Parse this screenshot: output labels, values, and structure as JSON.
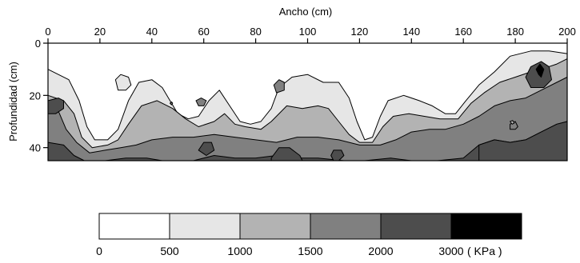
{
  "chart_data": {
    "type": "heatmap",
    "title": "",
    "xlabel": "Ancho (cm)",
    "ylabel": "Profundidad (cm)",
    "x_axis_position": "top",
    "xlim": [
      0,
      200
    ],
    "ylim": [
      0,
      45
    ],
    "y_inverted": true,
    "x_ticks": [
      0,
      20,
      40,
      60,
      80,
      100,
      120,
      140,
      160,
      180,
      200
    ],
    "y_ticks": [
      0,
      20,
      40
    ],
    "legend": {
      "placement": "bottom",
      "breaks": [
        "0",
        "500",
        "1000",
        "1500",
        "2000",
        "3000"
      ],
      "unit": "( KPa )",
      "classes": [
        {
          "from": 0,
          "to": 500,
          "color": "#ffffff"
        },
        {
          "from": 500,
          "to": 1000,
          "color": "#e6e6e6"
        },
        {
          "from": 1000,
          "to": 1500,
          "color": "#b3b3b3"
        },
        {
          "from": 1500,
          "to": 2000,
          "color": "#808080"
        },
        {
          "from": 2000,
          "to": 3000,
          "color": "#4d4d4d"
        },
        {
          "from": 3000,
          "to": null,
          "color": "#000000"
        }
      ]
    },
    "contours": [
      {
        "level": 500,
        "color": "#e6e6e6",
        "upper": [
          [
            0,
            10
          ],
          [
            8,
            14
          ],
          [
            12,
            22
          ],
          [
            15,
            32
          ],
          [
            18,
            37
          ],
          [
            23,
            37
          ],
          [
            27,
            33
          ],
          [
            31,
            22
          ],
          [
            35,
            15
          ],
          [
            40,
            14
          ],
          [
            44,
            17
          ],
          [
            47,
            22
          ],
          [
            50,
            27
          ],
          [
            54,
            29
          ],
          [
            58,
            28
          ],
          [
            62,
            22
          ],
          [
            66,
            18
          ],
          [
            70,
            24
          ],
          [
            74,
            30
          ],
          [
            78,
            31
          ],
          [
            82,
            30
          ],
          [
            86,
            25
          ],
          [
            89,
            17
          ],
          [
            94,
            13
          ],
          [
            100,
            12
          ],
          [
            106,
            15
          ],
          [
            112,
            15
          ],
          [
            116,
            21
          ],
          [
            119,
            30
          ],
          [
            122,
            37
          ],
          [
            125,
            36
          ],
          [
            128,
            28
          ],
          [
            131,
            22
          ],
          [
            137,
            20
          ],
          [
            143,
            22
          ],
          [
            148,
            24
          ],
          [
            153,
            27
          ],
          [
            157,
            27
          ],
          [
            161,
            22
          ],
          [
            166,
            16
          ],
          [
            172,
            11
          ],
          [
            178,
            5
          ],
          [
            186,
            3
          ],
          [
            193,
            3
          ],
          [
            200,
            4
          ]
        ]
      },
      {
        "level": 1000,
        "color": "#b3b3b3",
        "upper": [
          [
            0,
            20
          ],
          [
            6,
            22
          ],
          [
            10,
            27
          ],
          [
            13,
            36
          ],
          [
            17,
            40
          ],
          [
            23,
            39
          ],
          [
            27,
            37
          ],
          [
            31,
            31
          ],
          [
            36,
            24
          ],
          [
            42,
            22
          ],
          [
            48,
            25
          ],
          [
            53,
            29
          ],
          [
            58,
            32
          ],
          [
            64,
            30
          ],
          [
            68,
            27
          ],
          [
            72,
            31
          ],
          [
            76,
            32
          ],
          [
            82,
            33
          ],
          [
            86,
            30
          ],
          [
            92,
            24
          ],
          [
            98,
            25
          ],
          [
            104,
            24
          ],
          [
            108,
            25
          ],
          [
            112,
            30
          ],
          [
            116,
            35
          ],
          [
            120,
            38
          ],
          [
            125,
            38
          ],
          [
            129,
            32
          ],
          [
            133,
            28
          ],
          [
            139,
            27
          ],
          [
            145,
            28
          ],
          [
            151,
            29
          ],
          [
            158,
            29
          ],
          [
            163,
            23
          ],
          [
            168,
            19
          ],
          [
            174,
            15
          ],
          [
            180,
            13
          ],
          [
            186,
            11
          ],
          [
            190,
            10
          ],
          [
            196,
            8
          ],
          [
            200,
            6
          ]
        ]
      },
      {
        "level": 1500,
        "color": "#808080",
        "upper": [
          [
            0,
            22
          ],
          [
            4,
            26
          ],
          [
            7,
            33
          ],
          [
            11,
            38
          ],
          [
            16,
            42
          ],
          [
            22,
            41
          ],
          [
            28,
            40
          ],
          [
            34,
            39
          ],
          [
            40,
            37
          ],
          [
            48,
            36
          ],
          [
            56,
            36
          ],
          [
            64,
            35
          ],
          [
            72,
            36
          ],
          [
            80,
            37
          ],
          [
            88,
            38
          ],
          [
            96,
            36
          ],
          [
            104,
            36
          ],
          [
            112,
            37
          ],
          [
            120,
            39
          ],
          [
            128,
            39
          ],
          [
            134,
            37
          ],
          [
            140,
            34
          ],
          [
            147,
            33
          ],
          [
            153,
            33
          ],
          [
            160,
            31
          ],
          [
            166,
            28
          ],
          [
            172,
            24
          ],
          [
            178,
            22
          ],
          [
            184,
            21
          ],
          [
            190,
            18
          ],
          [
            196,
            15
          ],
          [
            200,
            13
          ]
        ]
      },
      {
        "level": 2000,
        "color": "#4d4d4d",
        "upper": [
          [
            0,
            38
          ],
          [
            6,
            39
          ],
          [
            10,
            43
          ],
          [
            14,
            45
          ],
          [
            22,
            45
          ],
          [
            30,
            44
          ],
          [
            38,
            44
          ],
          [
            44,
            45
          ],
          [
            56,
            45
          ],
          [
            64,
            43
          ],
          [
            72,
            44
          ],
          [
            80,
            44
          ],
          [
            88,
            43
          ],
          [
            96,
            44
          ],
          [
            104,
            44
          ],
          [
            114,
            45
          ],
          [
            122,
            45
          ],
          [
            132,
            44
          ],
          [
            140,
            45
          ],
          [
            150,
            45
          ],
          [
            160,
            44
          ],
          [
            166,
            39
          ],
          [
            172,
            37
          ],
          [
            178,
            38
          ],
          [
            184,
            37
          ],
          [
            190,
            34
          ],
          [
            196,
            31
          ],
          [
            200,
            30
          ]
        ]
      }
    ],
    "patches": [
      {
        "level": 500,
        "color": "#e6e6e6",
        "points": [
          [
            26,
            14
          ],
          [
            28,
            12
          ],
          [
            31,
            13
          ],
          [
            32,
            16
          ],
          [
            30,
            18
          ],
          [
            27,
            18
          ]
        ]
      },
      {
        "level": 1500,
        "color": "#808080",
        "points": [
          [
            87,
            16
          ],
          [
            89,
            14
          ],
          [
            91,
            15
          ],
          [
            91,
            18
          ],
          [
            88,
            19
          ]
        ]
      },
      {
        "level": 1500,
        "color": "#808080",
        "points": [
          [
            57,
            22
          ],
          [
            59,
            21
          ],
          [
            61,
            22
          ],
          [
            60,
            24
          ],
          [
            58,
            24
          ]
        ]
      },
      {
        "level": 1500,
        "color": "#808080",
        "points": [
          [
            47,
            23
          ],
          [
            47.6,
            22.5
          ],
          [
            48,
            23
          ],
          [
            47.6,
            23.6
          ]
        ]
      },
      {
        "level": 2000,
        "color": "#4d4d4d",
        "points": [
          [
            184,
            13
          ],
          [
            186,
            9
          ],
          [
            190,
            7
          ],
          [
            193,
            9
          ],
          [
            194,
            14
          ],
          [
            191,
            17
          ],
          [
            186,
            17
          ]
        ]
      },
      {
        "level": 2000,
        "color": "#4d4d4d",
        "points": [
          [
            0,
            22
          ],
          [
            4,
            21
          ],
          [
            6,
            22
          ],
          [
            6,
            25
          ],
          [
            3,
            27
          ],
          [
            0,
            27
          ]
        ]
      },
      {
        "level": 2000,
        "color": "#4d4d4d",
        "points": [
          [
            58,
            41
          ],
          [
            60,
            38
          ],
          [
            63,
            38
          ],
          [
            64,
            41
          ],
          [
            61,
            43
          ]
        ]
      },
      {
        "level": 2000,
        "color": "#4d4d4d",
        "points": [
          [
            109,
            43
          ],
          [
            110,
            41
          ],
          [
            113,
            41
          ],
          [
            114,
            43
          ],
          [
            112,
            45
          ],
          [
            110,
            45
          ]
        ]
      },
      {
        "level": 2000,
        "color": "#4d4d4d",
        "points": [
          [
            86,
            44
          ],
          [
            89,
            40
          ],
          [
            93,
            40
          ],
          [
            97,
            43
          ],
          [
            98,
            45
          ],
          [
            86,
            45
          ]
        ]
      },
      {
        "level": 2000,
        "color": "#4d4d4d",
        "points": [
          [
            166,
            39
          ],
          [
            172,
            37
          ],
          [
            178,
            38
          ],
          [
            184,
            37
          ],
          [
            190,
            34
          ],
          [
            196,
            31
          ],
          [
            200,
            30
          ],
          [
            200,
            45
          ],
          [
            166,
            45
          ]
        ]
      },
      {
        "level": 3000,
        "color": "#000000",
        "points": [
          [
            188,
            10
          ],
          [
            189.5,
            8
          ],
          [
            191,
            10
          ],
          [
            190,
            13
          ],
          [
            189,
            12
          ]
        ]
      },
      {
        "level": 1500,
        "color": "#808080",
        "points": [
          [
            178,
            31
          ],
          [
            180,
            30
          ],
          [
            181,
            32
          ],
          [
            180,
            33
          ],
          [
            178,
            33
          ]
        ]
      },
      {
        "level": 1000,
        "color": "#b3b3b3",
        "points": [
          [
            178,
            30
          ],
          [
            179,
            29.6
          ],
          [
            179.6,
            30.6
          ],
          [
            178.8,
            31
          ]
        ]
      }
    ]
  }
}
